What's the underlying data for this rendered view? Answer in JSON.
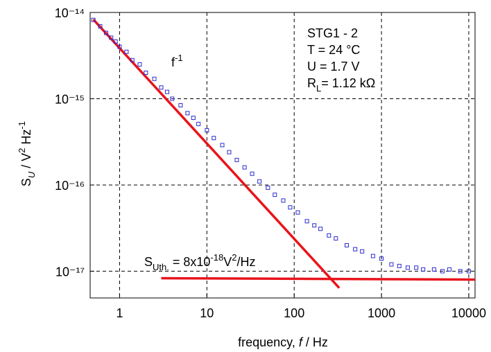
{
  "chart_data": {
    "type": "scatter",
    "xscale": "log",
    "yscale": "log",
    "grid": true,
    "xlim": [
      0.46,
      11800
    ],
    "ylim": [
      4.9e-18,
      1e-14
    ],
    "xticks": [
      1,
      10,
      100,
      1000,
      10000
    ],
    "yticks": [
      {
        "value": 1e-14,
        "label": "10⁻¹⁴"
      },
      {
        "value": 1e-15,
        "label": "10⁻¹⁵"
      },
      {
        "value": 1e-16,
        "label": "10⁻¹⁶"
      },
      {
        "value": 1e-17,
        "label": "10⁻¹⁷"
      }
    ],
    "x_label": [
      {
        "text": "frequency, "
      },
      {
        "text": "f",
        "italic": true
      },
      {
        "text": " / Hz"
      }
    ],
    "y_label": [
      {
        "text": "S"
      },
      {
        "text": "U",
        "shift": "sub",
        "italic": true
      },
      {
        "text": " / V"
      },
      {
        "text": "2",
        "shift": "super"
      },
      {
        "text": " Hz"
      },
      {
        "text": "-1",
        "shift": "super"
      }
    ],
    "series": [
      {
        "color": "#2a2ad0",
        "x": [
          0.5,
          0.6,
          0.7,
          0.8,
          0.9,
          1,
          1.2,
          1.4,
          1.7,
          2,
          2.5,
          3,
          3.5,
          4,
          5,
          6,
          7,
          8,
          10,
          12,
          15,
          18,
          22,
          27,
          33,
          40,
          50,
          60,
          75,
          90,
          110,
          140,
          170,
          200,
          250,
          300,
          400,
          500,
          600,
          800,
          1000,
          1300,
          1600,
          2000,
          2500,
          3000,
          4000,
          5000,
          6000,
          8000,
          10000
        ],
        "values": [
          8.2e-15,
          6.9e-15,
          5.8e-15,
          5.1e-15,
          4.6e-15,
          4e-15,
          3.5e-15,
          2.8e-15,
          2.5e-15,
          2e-15,
          1.7e-15,
          1.35e-15,
          1.2e-15,
          1e-15,
          8.4e-16,
          6.8e-16,
          6e-16,
          5.1e-16,
          4.3e-16,
          3.5e-16,
          2.9e-16,
          2.4e-16,
          1.95e-16,
          1.6e-16,
          1.35e-16,
          1.1e-16,
          9.3e-17,
          7.7e-17,
          6.6e-17,
          5.5e-17,
          4.8e-17,
          3.8e-17,
          3.4e-17,
          3.1e-17,
          2.6e-17,
          2.4e-17,
          2e-17,
          1.8e-17,
          1.7e-17,
          1.5e-17,
          1.4e-17,
          1.2e-17,
          1.15e-17,
          1.1e-17,
          1.1e-17,
          1.05e-17,
          1.05e-17,
          1e-17,
          1.05e-17,
          1e-17,
          1e-17
        ]
      }
    ],
    "lines": [
      {
        "color": "#e8141c",
        "x": [
          0.5,
          328
        ],
        "values": [
          8.3e-15,
          6.4e-18
        ]
      },
      {
        "color": "#e8141c",
        "x": [
          3,
          11800
        ],
        "values": [
          8.3e-18,
          8e-18
        ]
      }
    ],
    "annotations": [
      [
        {
          "text": "STG1 - 2"
        }
      ],
      [
        {
          "text": "T = 24 °C"
        }
      ],
      [
        {
          "text": "U = 1.7 V"
        }
      ],
      [
        {
          "text": "R"
        },
        {
          "text": "L",
          "shift": "sub"
        },
        {
          "text": "= 1.12 kΩ"
        }
      ],
      [
        {
          "text": "f"
        },
        {
          "text": "-1",
          "shift": "super"
        }
      ],
      [
        {
          "text": "S"
        },
        {
          "text": "Uth.",
          "shift": "sub"
        },
        {
          "text": " = 8x10"
        },
        {
          "text": "-18",
          "shift": "super"
        },
        {
          "text": "V"
        },
        {
          "text": "2",
          "shift": "super"
        },
        {
          "text": "/Hz"
        }
      ]
    ]
  }
}
